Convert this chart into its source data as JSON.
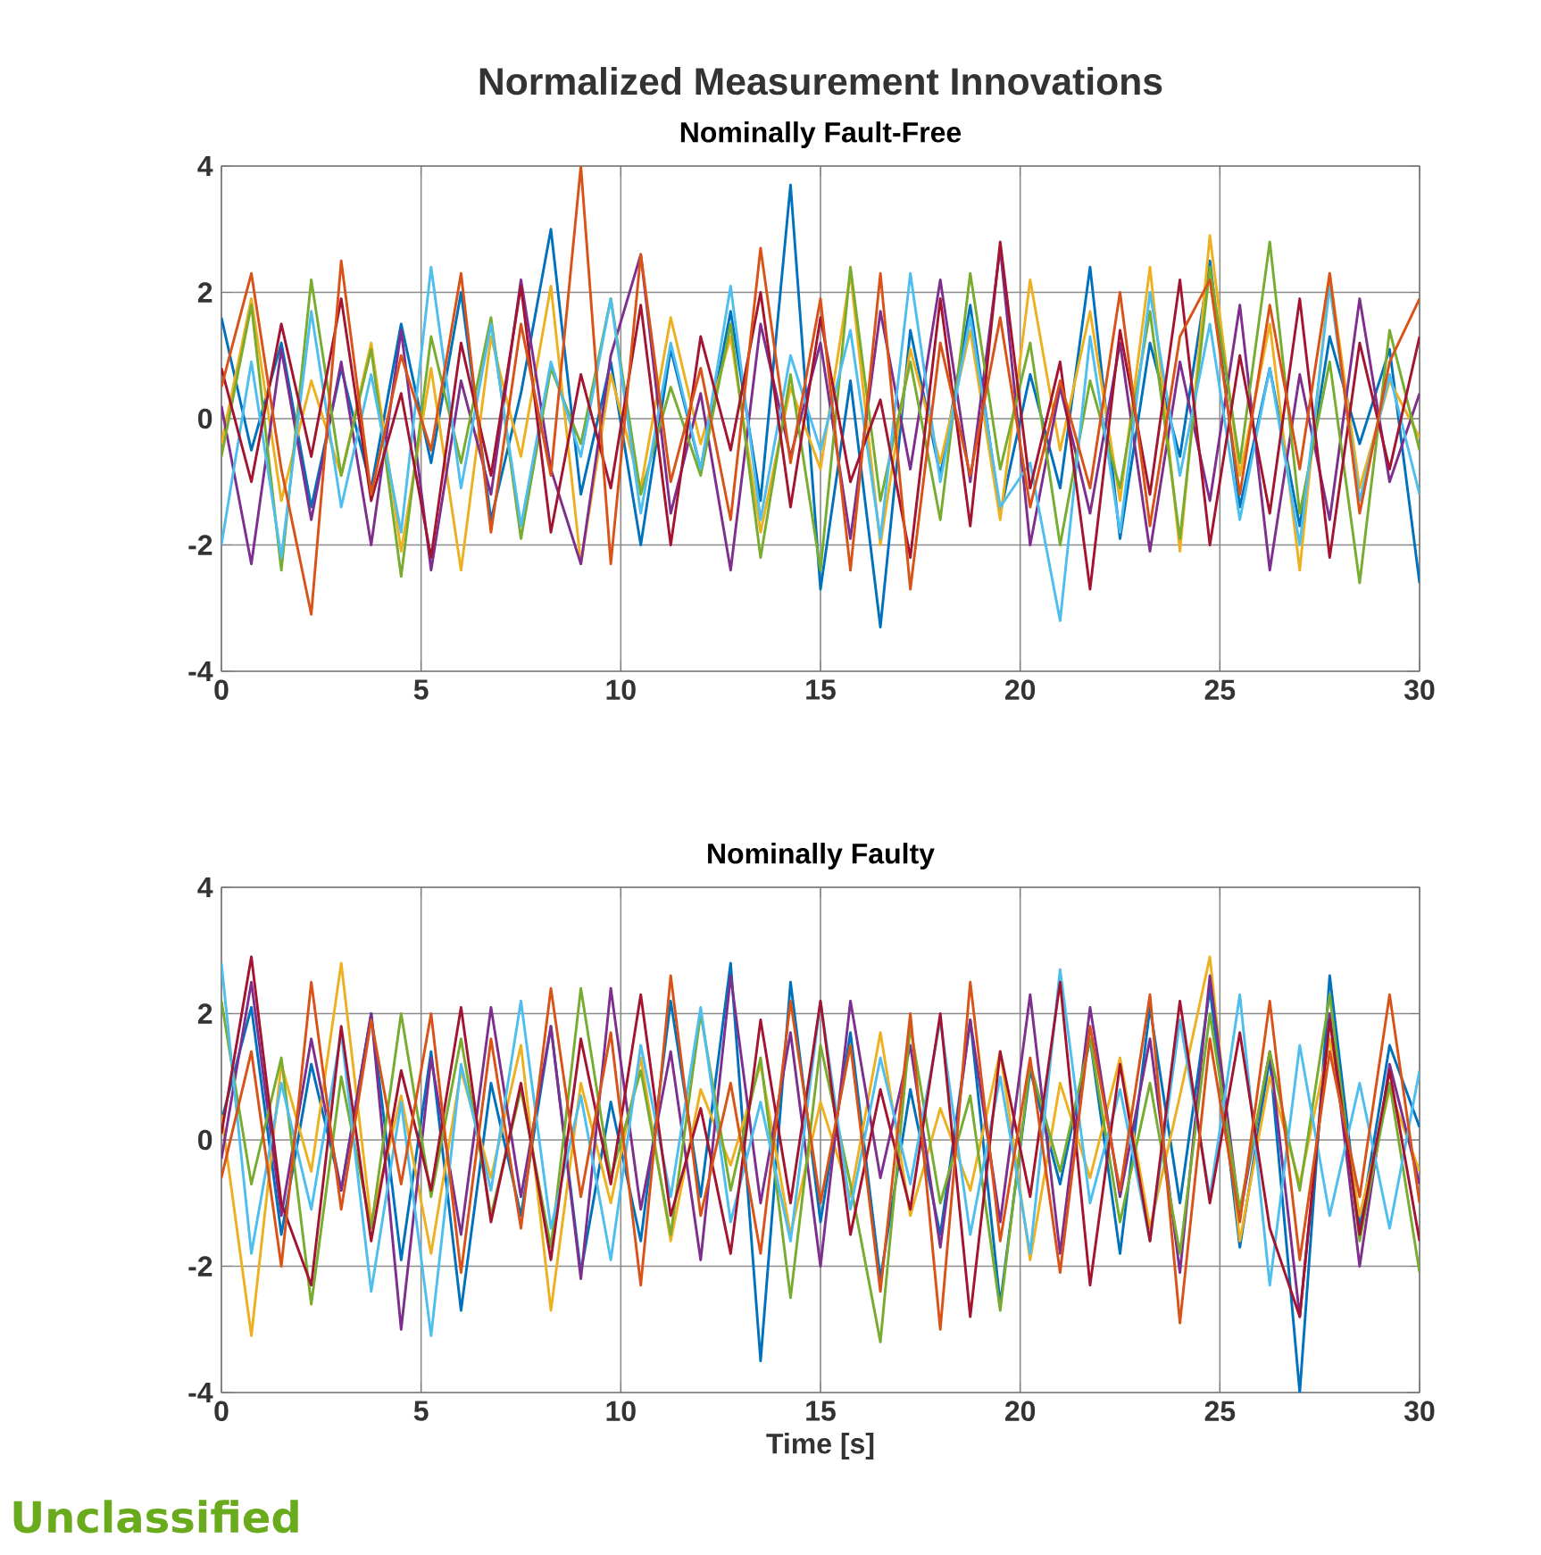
{
  "chart_data": [
    {
      "type": "line",
      "title": "Normalized Measurement Innovations",
      "subtitle": "Nominally Fault-Free",
      "x": [
        0,
        0.75,
        1.5,
        2.25,
        3,
        3.75,
        4.5,
        5.25,
        6,
        6.75,
        7.5,
        8.25,
        9,
        9.75,
        10.5,
        11.25,
        12,
        12.75,
        13.5,
        14.25,
        15,
        15.75,
        16.5,
        17.25,
        18,
        18.75,
        19.5,
        20.25,
        21,
        21.75,
        22.5,
        23.25,
        24,
        24.75,
        25.5,
        26.25,
        27,
        27.75,
        28.5,
        29.25,
        30
      ],
      "xlim": [
        0,
        30
      ],
      "ylim": [
        -4,
        4
      ],
      "xticks": [
        0,
        5,
        10,
        15,
        20,
        25,
        30
      ],
      "yticks": [
        -4,
        -2,
        0,
        2,
        4
      ],
      "grid": true,
      "series": [
        {
          "color": "#0072bd",
          "values": [
            1.6,
            -0.5,
            1.2,
            -1.4,
            0.8,
            -1.1,
            1.5,
            -0.7,
            2.0,
            -1.6,
            0.4,
            3.0,
            -1.2,
            0.9,
            -2.0,
            1.1,
            -0.8,
            1.7,
            -1.3,
            3.7,
            -2.7,
            0.6,
            -3.3,
            1.4,
            -0.9,
            1.8,
            -1.5,
            0.7,
            -1.1,
            2.4,
            -1.9,
            1.2,
            -0.6,
            2.5,
            -1.4,
            0.8,
            -1.7,
            1.3,
            -0.4,
            1.1,
            -2.6
          ]
        },
        {
          "color": "#edb120",
          "values": [
            -0.4,
            1.9,
            -1.3,
            0.6,
            -0.9,
            1.2,
            -2.1,
            0.8,
            -2.4,
            1.3,
            -0.6,
            2.1,
            -2.3,
            0.7,
            -1.1,
            1.6,
            -0.4,
            1.3,
            -1.8,
            0.5,
            -0.8,
            2.3,
            -2.0,
            1.1,
            -0.7,
            1.4,
            -1.6,
            2.2,
            -0.5,
            1.7,
            -1.3,
            2.4,
            -2.1,
            2.9,
            -0.9,
            1.5,
            -2.4,
            2.3,
            -1.1,
            0.6,
            -0.3
          ]
        },
        {
          "color": "#7e2f8e",
          "values": [
            0.2,
            -2.3,
            1.1,
            -1.6,
            0.9,
            -2.0,
            1.4,
            -2.4,
            0.6,
            -1.2,
            2.2,
            -0.8,
            -2.3,
            1.0,
            2.6,
            -1.5,
            0.4,
            -2.4,
            1.5,
            -0.6,
            1.2,
            -1.9,
            1.7,
            -0.8,
            2.2,
            -1.0,
            2.7,
            -2.0,
            0.5,
            -1.5,
            1.2,
            -2.1,
            0.9,
            -1.3,
            1.8,
            -2.4,
            0.7,
            -1.6,
            1.9,
            -1.0,
            0.4
          ]
        },
        {
          "color": "#77ac30",
          "values": [
            -0.6,
            1.8,
            -2.4,
            2.2,
            -0.9,
            1.1,
            -2.5,
            1.3,
            -0.7,
            1.6,
            -1.9,
            0.8,
            -0.4,
            1.9,
            -1.2,
            0.5,
            -0.9,
            1.5,
            -2.2,
            0.7,
            -2.4,
            2.4,
            -1.3,
            0.9,
            -1.6,
            2.3,
            -0.8,
            1.2,
            -2.0,
            0.6,
            -1.1,
            1.7,
            -1.9,
            2.4,
            -0.7,
            2.8,
            -1.5,
            0.9,
            -2.6,
            1.4,
            -0.5
          ]
        },
        {
          "color": "#4dbeee",
          "values": [
            -2.0,
            0.9,
            -2.2,
            1.7,
            -1.4,
            0.7,
            -1.8,
            2.4,
            -1.1,
            1.5,
            -1.7,
            0.9,
            -0.6,
            1.9,
            -1.5,
            1.2,
            -0.8,
            2.1,
            -1.6,
            1.0,
            -0.5,
            1.4,
            -1.9,
            2.3,
            -1.0,
            1.6,
            -1.4,
            -0.7,
            -3.2,
            1.3,
            -1.8,
            2.0,
            -0.9,
            1.5,
            -1.6,
            0.8,
            -2.0,
            2.1,
            -1.3,
            0.7,
            -1.2
          ]
        },
        {
          "color": "#a2142f",
          "values": [
            0.8,
            -1.0,
            1.5,
            -0.6,
            1.9,
            -1.3,
            0.4,
            -2.2,
            1.2,
            -0.9,
            2.1,
            -1.8,
            0.7,
            -1.1,
            1.8,
            -2.0,
            1.3,
            -0.5,
            2.0,
            -1.4,
            1.6,
            -1.0,
            0.3,
            -2.2,
            1.9,
            -1.7,
            2.8,
            -1.1,
            0.9,
            -2.7,
            1.4,
            -1.2,
            2.2,
            -2.0,
            1.0,
            -1.5,
            1.9,
            -2.2,
            1.2,
            -0.8,
            1.3
          ]
        },
        {
          "color": "#d95319",
          "values": [
            0.5,
            2.3,
            -0.8,
            -3.1,
            2.5,
            -1.2,
            1.0,
            -0.5,
            2.3,
            -1.8,
            1.5,
            -0.9,
            4.0,
            -2.3,
            2.6,
            -1.0,
            0.8,
            -1.6,
            2.7,
            -0.7,
            1.9,
            -2.4,
            2.3,
            -2.7,
            1.2,
            -0.9,
            1.6,
            -1.4,
            0.6,
            -1.1,
            2.0,
            -1.7,
            1.3,
            2.2,
            -1.2,
            1.8,
            -0.8,
            2.3,
            -1.5,
            0.9,
            1.9
          ]
        }
      ]
    },
    {
      "type": "line",
      "title": "Nominally Faulty",
      "xlabel": "Time [s]",
      "annotations": [
        "Unclassified"
      ],
      "x": [
        0,
        0.75,
        1.5,
        2.25,
        3,
        3.75,
        4.5,
        5.25,
        6,
        6.75,
        7.5,
        8.25,
        9,
        9.75,
        10.5,
        11.25,
        12,
        12.75,
        13.5,
        14.25,
        15,
        15.75,
        16.5,
        17.25,
        18,
        18.75,
        19.5,
        20.25,
        21,
        21.75,
        22.5,
        23.25,
        24,
        24.75,
        25.5,
        26.25,
        27,
        27.75,
        28.5,
        29.25,
        30
      ],
      "xlim": [
        0,
        30
      ],
      "ylim": [
        -4,
        4
      ],
      "xticks": [
        0,
        5,
        10,
        15,
        20,
        25,
        30
      ],
      "yticks": [
        -4,
        -2,
        0,
        2,
        4
      ],
      "grid": true,
      "series": [
        {
          "color": "#0072bd",
          "values": [
            0.3,
            2.1,
            -1.5,
            1.2,
            -0.8,
            2.0,
            -1.9,
            1.4,
            -2.7,
            0.9,
            -1.2,
            1.8,
            -2.1,
            0.6,
            -1.6,
            2.2,
            -0.9,
            2.8,
            -3.5,
            2.5,
            -1.3,
            1.7,
            -2.2,
            0.8,
            -1.5,
            1.9,
            -2.6,
            1.1,
            -0.7,
            1.6,
            -1.8,
            2.1,
            -1.0,
            2.4,
            -1.7,
            1.3,
            -4.0,
            2.6,
            -1.4,
            1.5,
            0.2
          ]
        },
        {
          "color": "#edb120",
          "values": [
            0.4,
            -3.1,
            1.2,
            -0.5,
            2.8,
            -1.3,
            0.7,
            -1.8,
            1.1,
            -0.6,
            1.5,
            -2.7,
            0.9,
            -1.0,
            1.3,
            -1.6,
            0.8,
            -0.4,
            1.2,
            -1.5,
            0.6,
            -0.9,
            1.7,
            -1.2,
            0.5,
            -0.8,
            1.4,
            -1.9,
            0.9,
            -0.6,
            1.3,
            -1.4,
            0.7,
            2.9,
            -1.6,
            1.0,
            -0.7,
            1.6,
            -1.2,
            0.8,
            -0.5
          ]
        },
        {
          "color": "#7e2f8e",
          "values": [
            -0.3,
            2.5,
            -1.2,
            1.6,
            -0.8,
            2.0,
            -3.0,
            1.3,
            -1.5,
            2.1,
            -0.9,
            1.8,
            -2.2,
            2.4,
            -1.1,
            1.4,
            -1.9,
            2.6,
            -1.0,
            1.7,
            -2.0,
            2.2,
            -0.6,
            1.5,
            -1.7,
            1.9,
            -1.3,
            2.3,
            -1.8,
            2.1,
            -0.9,
            1.6,
            -2.1,
            2.6,
            -1.2,
            1.4,
            -2.8,
            2.0,
            -2.0,
            1.2,
            -0.7
          ]
        },
        {
          "color": "#77ac30",
          "values": [
            2.2,
            -0.7,
            1.3,
            -2.6,
            1.0,
            -1.4,
            2.0,
            -0.9,
            1.6,
            -1.2,
            0.8,
            -1.7,
            2.4,
            -0.6,
            1.1,
            -1.5,
            2.0,
            -0.8,
            1.3,
            -2.5,
            1.5,
            -0.7,
            -3.2,
            1.8,
            -1.0,
            0.7,
            -2.7,
            1.2,
            -0.5,
            1.6,
            -1.3,
            0.9,
            -1.8,
            2.0,
            -1.1,
            1.4,
            -0.8,
            2.3,
            -1.6,
            0.9,
            -2.1
          ]
        },
        {
          "color": "#4dbeee",
          "values": [
            2.8,
            -1.8,
            0.9,
            -1.1,
            1.7,
            -2.4,
            0.6,
            -3.1,
            1.2,
            -0.8,
            2.2,
            -1.4,
            0.7,
            -1.9,
            1.5,
            -0.9,
            2.1,
            -1.3,
            0.6,
            -1.6,
            2.2,
            -1.1,
            1.3,
            -0.7,
            1.9,
            -1.5,
            1.0,
            -1.8,
            2.7,
            -1.0,
            0.8,
            -1.6,
            1.9,
            -0.9,
            2.3,
            -2.3,
            1.5,
            -1.2,
            0.9,
            -1.4,
            1.1
          ]
        },
        {
          "color": "#a2142f",
          "values": [
            0.1,
            2.9,
            -1.0,
            -2.3,
            1.8,
            -1.6,
            1.1,
            -0.8,
            2.1,
            -1.3,
            0.9,
            -1.9,
            1.6,
            -0.7,
            2.3,
            -1.2,
            0.5,
            -1.8,
            1.9,
            -1.0,
            2.2,
            -1.5,
            0.8,
            -1.1,
            2.0,
            -2.8,
            1.4,
            -0.9,
            2.5,
            -2.3,
            1.2,
            -1.6,
            2.2,
            -1.0,
            1.7,
            -1.4,
            -2.8,
            1.9,
            -1.5,
            1.1,
            -1.6
          ]
        },
        {
          "color": "#d95319",
          "values": [
            -0.6,
            1.4,
            -2.0,
            2.5,
            -1.1,
            1.9,
            -0.7,
            2.0,
            -2.1,
            1.6,
            -1.4,
            2.4,
            -0.9,
            1.7,
            -2.3,
            2.6,
            -1.2,
            0.9,
            -1.8,
            2.2,
            -1.0,
            1.5,
            -2.4,
            2.0,
            -3.0,
            2.5,
            -1.6,
            1.3,
            -2.1,
            1.8,
            -0.8,
            2.3,
            -2.9,
            1.6,
            -1.3,
            2.2,
            -1.9,
            1.4,
            -0.9,
            2.3,
            -1.0
          ]
        }
      ]
    }
  ]
}
